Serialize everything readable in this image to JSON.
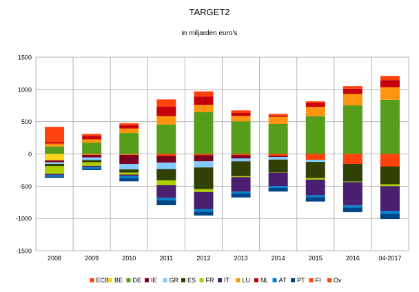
{
  "chart_data": {
    "type": "bar",
    "stacked": true,
    "title": "TARGET2",
    "subtitle": "in miljarden euro's",
    "xlabel": "",
    "ylabel": "",
    "ylim": [
      -1500,
      1500
    ],
    "yticks": [
      -1500,
      -1000,
      -500,
      0,
      500,
      1000,
      1500
    ],
    "grid": true,
    "legend_position": "bottom",
    "categories": [
      "2008",
      "2009",
      "2010",
      "2011",
      "2012",
      "2013",
      "2014",
      "2015",
      "2016",
      "04-2017"
    ],
    "series": [
      {
        "name": "ECB",
        "color": "#ff420e",
        "values": [
          0,
          0,
          0,
          0,
          0,
          0,
          0,
          0,
          0,
          0
        ]
      },
      {
        "name": "BE",
        "color": "#ffd320",
        "values": [
          -100,
          -15,
          -15,
          -15,
          -15,
          -10,
          -8,
          -8,
          -8,
          -10
        ]
      },
      {
        "name": "DE",
        "color": "#579d1c",
        "values": [
          115,
          175,
          325,
          455,
          650,
          505,
          465,
          585,
          755,
          840
        ]
      },
      {
        "name": "IE",
        "color": "#7e0021",
        "values": [
          -30,
          -40,
          -140,
          -120,
          -100,
          -60,
          -40,
          -15,
          -10,
          -10
        ]
      },
      {
        "name": "GR",
        "color": "#83caff",
        "values": [
          -25,
          -40,
          -85,
          -100,
          -95,
          -45,
          -40,
          -100,
          -80,
          -75
        ]
      },
      {
        "name": "ES",
        "color": "#314004",
        "values": [
          -35,
          -35,
          -50,
          -175,
          -335,
          -230,
          -195,
          -250,
          -330,
          -375
        ]
      },
      {
        "name": "FR",
        "color": "#aecf00",
        "values": [
          -120,
          -55,
          -30,
          -75,
          -45,
          -15,
          -5,
          -25,
          -10,
          -30
        ]
      },
      {
        "name": "IT",
        "color": "#4b1f6f",
        "values": [
          -20,
          -20,
          -25,
          -195,
          -265,
          -225,
          -210,
          -245,
          -360,
          -385
        ]
      },
      {
        "name": "LU",
        "color": "#ff950e",
        "values": [
          45,
          50,
          70,
          130,
          110,
          85,
          110,
          145,
          175,
          195
        ]
      },
      {
        "name": "NL",
        "color": "#c5000b",
        "values": [
          25,
          55,
          50,
          150,
          130,
          45,
          20,
          60,
          80,
          110
        ]
      },
      {
        "name": "AT",
        "color": "#0084d1",
        "values": [
          -20,
          -25,
          -30,
          -40,
          -40,
          -30,
          -30,
          -30,
          -35,
          -45
        ]
      },
      {
        "name": "PT",
        "color": "#004586",
        "values": [
          -20,
          -20,
          -50,
          -75,
          -60,
          -60,
          -55,
          -65,
          -70,
          -80
        ]
      },
      {
        "name": "FI",
        "color": "#ff420e",
        "values": [
          235,
          0,
          0,
          50,
          0,
          0,
          0,
          0,
          0,
          0
        ]
      },
      {
        "name": "Ov",
        "color": "#ff420e",
        "values": [
          0,
          30,
          30,
          60,
          80,
          40,
          25,
          25,
          40,
          65
        ]
      }
    ],
    "negative_overlay": [
      {
        "name": "ECB",
        "values": [
          0,
          0,
          0,
          0,
          0,
          -20,
          -30,
          -90,
          -155,
          -195
        ]
      },
      {
        "name": "FI",
        "values": [
          0,
          -10,
          -10,
          -30,
          -20,
          0,
          0,
          0,
          0,
          0
        ]
      }
    ]
  }
}
